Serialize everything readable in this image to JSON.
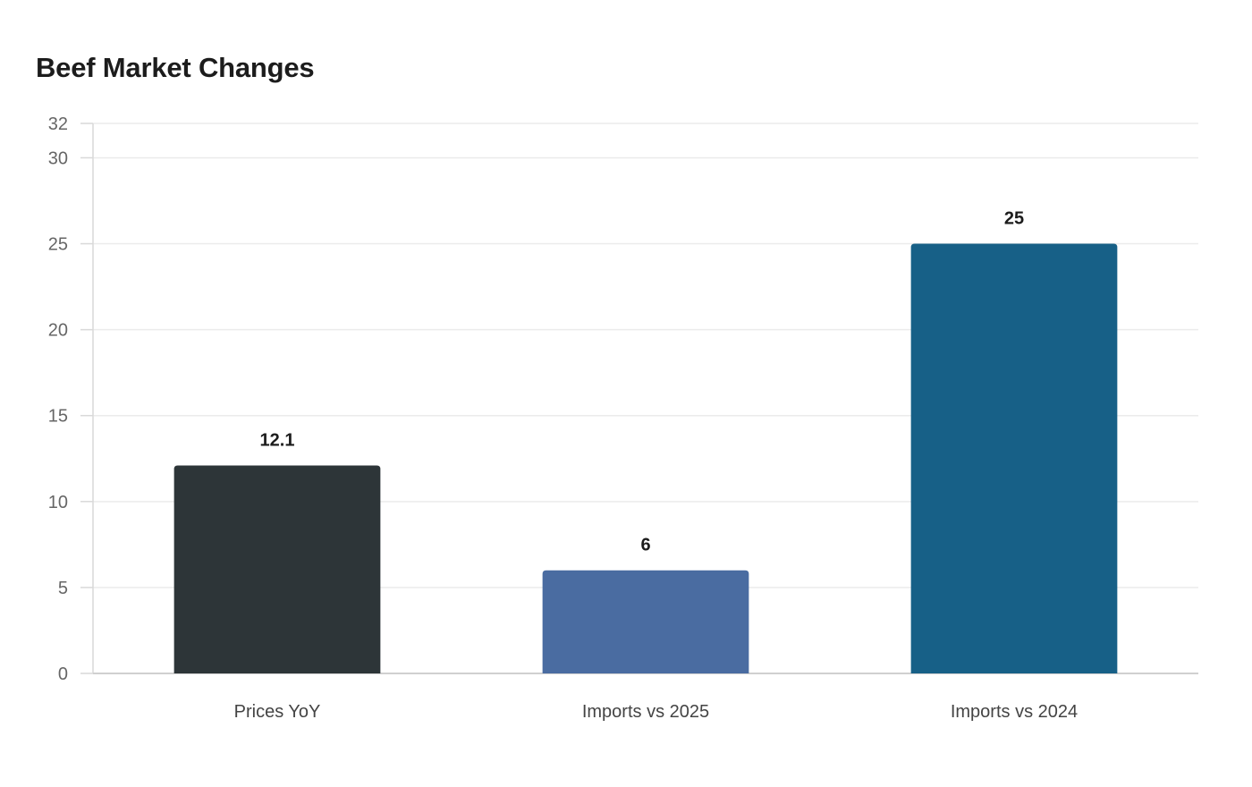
{
  "chart_data": {
    "type": "bar",
    "title": "Beef Market Changes",
    "xlabel": "",
    "ylabel": "",
    "categories": [
      "Prices YoY",
      "Imports vs 2025",
      "Imports vs 2024"
    ],
    "values": [
      12.1,
      6,
      25
    ],
    "value_labels": [
      "12.1",
      "6",
      "25"
    ],
    "colors": [
      "#2d3538",
      "#4a6ca1",
      "#176087"
    ],
    "ylim": [
      0,
      32
    ],
    "yticks": [
      0,
      5,
      10,
      15,
      20,
      25,
      30,
      32
    ],
    "grid": true,
    "legend": "none"
  }
}
